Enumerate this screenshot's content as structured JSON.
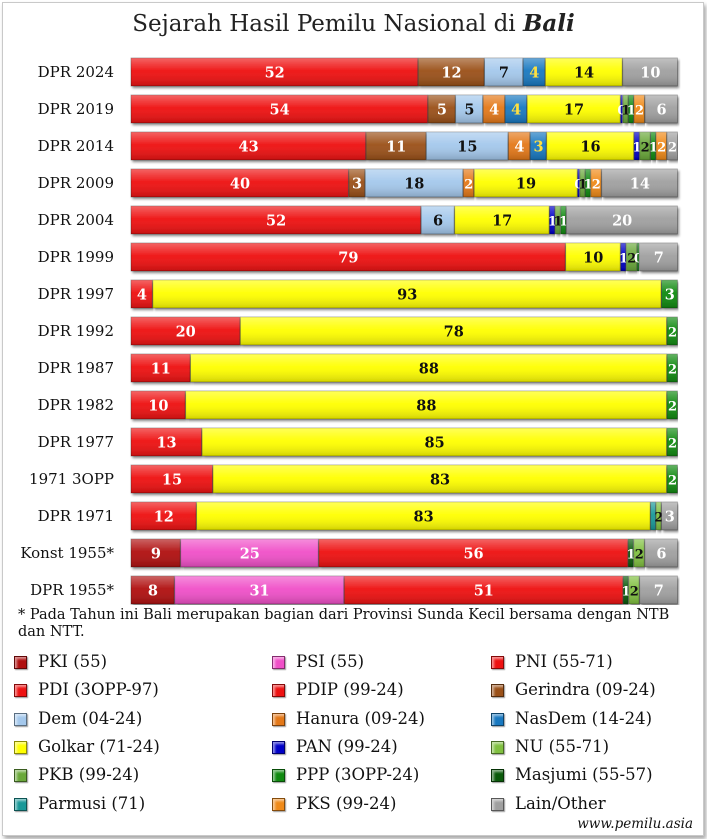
{
  "title": {
    "text": "Sejarah Hasil Pemilu Nasional di ",
    "emph": "Bali"
  },
  "note": "* Pada Tahun ini Bali merupakan bagian dari Provinsi Sunda Kecil bersama dengan NTB dan NTT.",
  "credit": "www.pemilu.asia",
  "colors": {
    "PKI": "#b01010",
    "PSI": "#f050c8",
    "PNI": "#ee1111",
    "PDI": "#ee1111",
    "PDIP": "#ee1111",
    "Gerindra": "#9a5018",
    "Dem": "#a4c8ec",
    "Hanura": "#e47818",
    "NasDem": "#1878c0",
    "Golkar": "#ffff00",
    "PAN": "#0000c8",
    "NU": "#80c040",
    "PKB": "#6aa83a",
    "PPP": "#108a10",
    "Masjumi": "#0a5a0a",
    "Parmusi": "#189898",
    "PKS": "#f08a18",
    "Other": "#a0a0a0"
  },
  "legend": [
    {
      "key": "PKI",
      "label": "PKI (55)"
    },
    {
      "key": "PSI",
      "label": "PSI (55)"
    },
    {
      "key": "PNI",
      "label": "PNI (55-71)"
    },
    {
      "key": "PDI",
      "label": "PDI (3OPP-97)"
    },
    {
      "key": "PDIP",
      "label": "PDIP (99-24)"
    },
    {
      "key": "Gerindra",
      "label": "Gerindra (09-24)"
    },
    {
      "key": "Dem",
      "label": "Dem (04-24)"
    },
    {
      "key": "Hanura",
      "label": "Hanura (09-24)"
    },
    {
      "key": "NasDem",
      "label": "NasDem (14-24)"
    },
    {
      "key": "Golkar",
      "label": "Golkar (71-24)"
    },
    {
      "key": "PAN",
      "label": "PAN (99-24)"
    },
    {
      "key": "NU",
      "label": "NU (55-71)"
    },
    {
      "key": "PKB",
      "label": "PKB (99-24)"
    },
    {
      "key": "PPP",
      "label": "PPP (3OPP-24)"
    },
    {
      "key": "Masjumi",
      "label": "Masjumi (55-57)"
    },
    {
      "key": "Parmusi",
      "label": "Parmusi (71)"
    },
    {
      "key": "PKS",
      "label": "PKS (99-24)"
    },
    {
      "key": "Other",
      "label": "Lain/Other"
    }
  ],
  "chart_data": {
    "type": "bar",
    "orientation": "horizontal",
    "stacked": true,
    "xlim": [
      0,
      100
    ],
    "grid": false,
    "categories": [
      "DPR 2024",
      "DPR 2019",
      "DPR 2014",
      "DPR 2009",
      "DPR 2004",
      "DPR 1999",
      "DPR 1997",
      "DPR 1992",
      "DPR 1987",
      "DPR 1982",
      "DPR 1977",
      "1971 3OPP",
      "DPR 1971",
      "Konst 1955*",
      "DPR 1955*"
    ],
    "rows": [
      {
        "label": "DPR 2024",
        "segments": [
          {
            "party": "PDIP",
            "value": 52,
            "label": "52"
          },
          {
            "party": "Gerindra",
            "value": 12,
            "label": "12"
          },
          {
            "party": "Dem",
            "value": 7,
            "label": "7"
          },
          {
            "party": "NasDem",
            "value": 4,
            "label": "4"
          },
          {
            "party": "Golkar",
            "value": 14,
            "label": "14"
          },
          {
            "party": "Other",
            "value": 10,
            "label": "10"
          }
        ]
      },
      {
        "label": "DPR 2019",
        "segments": [
          {
            "party": "PDIP",
            "value": 54,
            "label": "54"
          },
          {
            "party": "Gerindra",
            "value": 5,
            "label": "5"
          },
          {
            "party": "Dem",
            "value": 5,
            "label": "5"
          },
          {
            "party": "Hanura",
            "value": 4,
            "label": "4"
          },
          {
            "party": "NasDem",
            "value": 4,
            "label": "4"
          },
          {
            "party": "Golkar",
            "value": 17,
            "label": "17"
          },
          {
            "party": "PAN",
            "value": 0.4,
            "label": "0"
          },
          {
            "party": "PKB",
            "value": 1,
            "label": "1"
          },
          {
            "party": "PPP",
            "value": 1,
            "label": "1"
          },
          {
            "party": "PKS",
            "value": 2,
            "label": "2"
          },
          {
            "party": "Other",
            "value": 6,
            "label": "6"
          }
        ]
      },
      {
        "label": "DPR 2014",
        "segments": [
          {
            "party": "PDIP",
            "value": 43,
            "label": "43"
          },
          {
            "party": "Gerindra",
            "value": 11,
            "label": "11"
          },
          {
            "party": "Dem",
            "value": 15,
            "label": "15"
          },
          {
            "party": "Hanura",
            "value": 4,
            "label": "4"
          },
          {
            "party": "NasDem",
            "value": 3,
            "label": "3"
          },
          {
            "party": "Golkar",
            "value": 16,
            "label": "16"
          },
          {
            "party": "PAN",
            "value": 1,
            "label": "1"
          },
          {
            "party": "PKB",
            "value": 2,
            "label": "2"
          },
          {
            "party": "PPP",
            "value": 1,
            "label": "1"
          },
          {
            "party": "PKS",
            "value": 2,
            "label": "2"
          },
          {
            "party": "Other",
            "value": 2,
            "label": "2"
          }
        ]
      },
      {
        "label": "DPR 2009",
        "segments": [
          {
            "party": "PDIP",
            "value": 40,
            "label": "40"
          },
          {
            "party": "Gerindra",
            "value": 3,
            "label": "3"
          },
          {
            "party": "Dem",
            "value": 18,
            "label": "18"
          },
          {
            "party": "Hanura",
            "value": 2,
            "label": "2"
          },
          {
            "party": "Golkar",
            "value": 19,
            "label": "19"
          },
          {
            "party": "PAN",
            "value": 0.4,
            "label": "0"
          },
          {
            "party": "PKB",
            "value": 1,
            "label": "1"
          },
          {
            "party": "PPP",
            "value": 1,
            "label": "1"
          },
          {
            "party": "PKS",
            "value": 2,
            "label": "2"
          },
          {
            "party": "Other",
            "value": 14,
            "label": "14"
          }
        ]
      },
      {
        "label": "DPR 2004",
        "segments": [
          {
            "party": "PDIP",
            "value": 52,
            "label": "52"
          },
          {
            "party": "Dem",
            "value": 6,
            "label": "6"
          },
          {
            "party": "Golkar",
            "value": 17,
            "label": "17"
          },
          {
            "party": "PAN",
            "value": 1,
            "label": "1"
          },
          {
            "party": "PKB",
            "value": 1,
            "label": "1"
          },
          {
            "party": "PPP",
            "value": 1,
            "label": "1"
          },
          {
            "party": "Other",
            "value": 20,
            "label": "20"
          }
        ]
      },
      {
        "label": "DPR 1999",
        "segments": [
          {
            "party": "PDIP",
            "value": 79,
            "label": "79"
          },
          {
            "party": "Golkar",
            "value": 10,
            "label": "10"
          },
          {
            "party": "PAN",
            "value": 1,
            "label": "1"
          },
          {
            "party": "PKB",
            "value": 2,
            "label": "2"
          },
          {
            "party": "PPP",
            "value": 0.4,
            "label": "0"
          },
          {
            "party": "Other",
            "value": 7,
            "label": "7"
          }
        ]
      },
      {
        "label": "DPR 1997",
        "segments": [
          {
            "party": "PDI",
            "value": 4,
            "label": "4"
          },
          {
            "party": "Golkar",
            "value": 93,
            "label": "93"
          },
          {
            "party": "PPP",
            "value": 3,
            "label": "3"
          }
        ]
      },
      {
        "label": "DPR 1992",
        "segments": [
          {
            "party": "PDI",
            "value": 20,
            "label": "20"
          },
          {
            "party": "Golkar",
            "value": 78,
            "label": "78"
          },
          {
            "party": "PPP",
            "value": 2,
            "label": "2"
          }
        ]
      },
      {
        "label": "DPR 1987",
        "segments": [
          {
            "party": "PDI",
            "value": 11,
            "label": "11"
          },
          {
            "party": "Golkar",
            "value": 88,
            "label": "88"
          },
          {
            "party": "PPP",
            "value": 2,
            "label": "2"
          }
        ]
      },
      {
        "label": "DPR 1982",
        "segments": [
          {
            "party": "PDI",
            "value": 10,
            "label": "10"
          },
          {
            "party": "Golkar",
            "value": 88,
            "label": "88"
          },
          {
            "party": "PPP",
            "value": 2,
            "label": "2"
          }
        ]
      },
      {
        "label": "DPR 1977",
        "segments": [
          {
            "party": "PDI",
            "value": 13,
            "label": "13"
          },
          {
            "party": "Golkar",
            "value": 85,
            "label": "85"
          },
          {
            "party": "PPP",
            "value": 2,
            "label": "2"
          }
        ]
      },
      {
        "label": "1971 3OPP",
        "segments": [
          {
            "party": "PDI",
            "value": 15,
            "label": "15"
          },
          {
            "party": "Golkar",
            "value": 83,
            "label": "83"
          },
          {
            "party": "PPP",
            "value": 2,
            "label": "2"
          }
        ]
      },
      {
        "label": "DPR 1971",
        "segments": [
          {
            "party": "PNI",
            "value": 12,
            "label": "12"
          },
          {
            "party": "Golkar",
            "value": 83,
            "label": "83"
          },
          {
            "party": "Parmusi",
            "value": 1,
            "label": ""
          },
          {
            "party": "NU",
            "value": 1,
            "label": "2"
          },
          {
            "party": "Other",
            "value": 3,
            "label": "3"
          }
        ]
      },
      {
        "label": "Konst 1955*",
        "segments": [
          {
            "party": "PKI",
            "value": 9,
            "label": "9"
          },
          {
            "party": "PSI",
            "value": 25,
            "label": "25"
          },
          {
            "party": "PNI",
            "value": 56,
            "label": "56"
          },
          {
            "party": "Masjumi",
            "value": 1,
            "label": "1"
          },
          {
            "party": "NU",
            "value": 2,
            "label": "2"
          },
          {
            "party": "Other",
            "value": 6,
            "label": "6"
          }
        ]
      },
      {
        "label": "DPR 1955*",
        "segments": [
          {
            "party": "PKI",
            "value": 8,
            "label": "8"
          },
          {
            "party": "PSI",
            "value": 31,
            "label": "31"
          },
          {
            "party": "PNI",
            "value": 51,
            "label": "51"
          },
          {
            "party": "Masjumi",
            "value": 1,
            "label": "1"
          },
          {
            "party": "NU",
            "value": 2,
            "label": "2"
          },
          {
            "party": "Other",
            "value": 7,
            "label": "7"
          }
        ]
      }
    ]
  }
}
